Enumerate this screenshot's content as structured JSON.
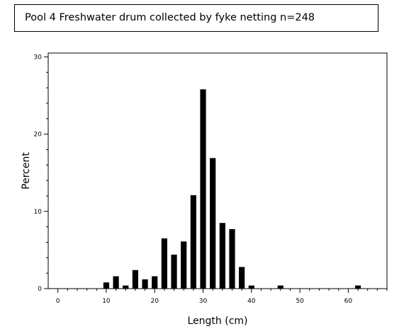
{
  "chart_data": {
    "type": "bar",
    "title": "Pool 4 Freshwater drum collected by fyke netting   n=248",
    "xlabel": "Length (cm)",
    "ylabel": "Percent",
    "xlim": [
      -2,
      68
    ],
    "ylim": [
      0,
      30.5
    ],
    "x_ticks": [
      0,
      10,
      20,
      30,
      40,
      50,
      60
    ],
    "y_ticks": [
      0,
      10,
      20,
      30
    ],
    "x_tick_labels": [
      "0",
      "10",
      "20",
      "30",
      "40",
      "50",
      "60"
    ],
    "y_tick_labels": [
      "0",
      "10",
      "20",
      "30"
    ],
    "bar_width": 1.2,
    "grid": false,
    "legend": "none",
    "x": [
      10,
      12,
      14,
      16,
      18,
      20,
      22,
      24,
      26,
      28,
      30,
      32,
      34,
      36,
      38,
      40,
      46,
      62
    ],
    "values": [
      0.8,
      1.6,
      0.4,
      2.4,
      1.2,
      1.6,
      6.5,
      4.4,
      6.1,
      12.1,
      25.8,
      16.9,
      8.5,
      7.7,
      2.8,
      0.4,
      0.4,
      0.4
    ],
    "colors": {
      "bar": "#000000",
      "axis": "#000000"
    }
  }
}
